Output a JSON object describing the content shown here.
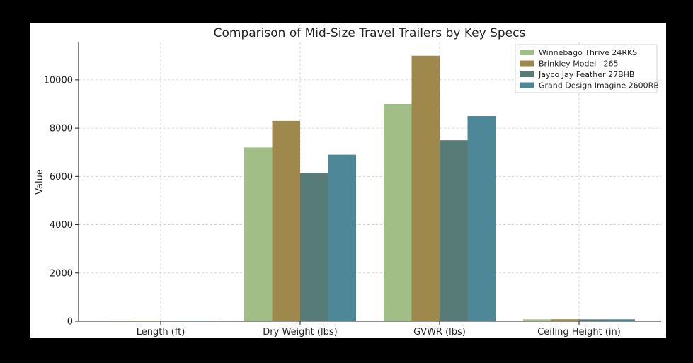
{
  "chart_data": {
    "type": "bar",
    "title": "Comparison of Mid-Size Travel Trailers by Key Specs",
    "xlabel": "",
    "ylabel": "Value",
    "categories": [
      "Length (ft)",
      "Dry Weight (lbs)",
      "GVWR (lbs)",
      "Ceiling Height (in)"
    ],
    "series": [
      {
        "name": "Winnebago Thrive 24RKS",
        "color": "#a1be86",
        "values": [
          25,
          7200,
          9000,
          78
        ]
      },
      {
        "name": "Brinkley Model I 265",
        "color": "#9f884b",
        "values": [
          29,
          8300,
          11000,
          82
        ]
      },
      {
        "name": "Jayco Jay Feather 27BHB",
        "color": "#577c77",
        "values": [
          28,
          6140,
          7500,
          79
        ]
      },
      {
        "name": "Grand Design Imagine 2600RB",
        "color": "#4e8797",
        "values": [
          30,
          6900,
          8500,
          80
        ]
      }
    ],
    "ylim": [
      0,
      11550
    ],
    "yticks": [
      0,
      2000,
      4000,
      6000,
      8000,
      10000
    ],
    "grid": true,
    "legend": "top-right"
  }
}
